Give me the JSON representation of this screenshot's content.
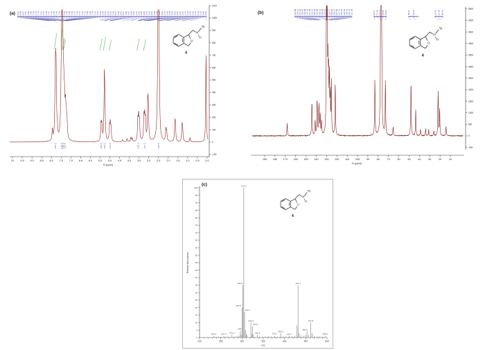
{
  "panels": {
    "a": {
      "label": "(a)"
    },
    "b": {
      "label": "(b)"
    },
    "c": {
      "label": "(c)"
    }
  },
  "molecule": {
    "substituent": "Ts",
    "nitrogen": "N",
    "proton": "H",
    "oxygen": "O",
    "compound_number": "4"
  },
  "chart_data": [
    {
      "id": "a",
      "type": "line",
      "spectrum": "1H NMR",
      "xlabel": "f1 (ppm)",
      "x_ticks": [
        "10",
        "9.5",
        "9.0",
        "8.5",
        "8.0",
        "7.5",
        "7.0",
        "6.5",
        "6.0",
        "5.5",
        "5.0",
        "4.5",
        "4.0",
        "3.5",
        "3.0",
        "2.5",
        "2.0",
        "1.5",
        "1.0",
        "0.5",
        "0.0"
      ],
      "y_ticks": [
        "1100",
        "1000",
        "900",
        "800",
        "700",
        "600",
        "500",
        "400",
        "300",
        "200",
        "100",
        "0",
        "-100"
      ],
      "line_color": "#8a1414",
      "annotation_color": "#3a3aa8",
      "integral_color": "#6abf69",
      "peaks": [
        [
          7.95,
          90
        ],
        [
          7.82,
          180
        ],
        [
          7.79,
          505
        ],
        [
          7.76,
          470
        ],
        [
          7.7,
          90
        ],
        [
          7.5,
          300,
          0.025
        ],
        [
          7.47,
          610,
          0.025
        ],
        [
          7.44,
          590,
          0.025
        ],
        [
          7.41,
          400,
          0.025
        ],
        [
          7.37,
          310,
          0.025
        ],
        [
          7.33,
          250,
          0.025
        ],
        [
          7.28,
          215,
          0.025
        ],
        [
          7.24,
          160,
          0.025
        ],
        [
          7.2,
          120,
          0.025
        ],
        [
          5.45,
          140
        ],
        [
          5.41,
          120
        ],
        [
          5.28,
          520
        ],
        [
          5.25,
          185
        ],
        [
          5.02,
          110
        ],
        [
          4.98,
          130
        ],
        [
          4.94,
          100
        ],
        [
          4.35,
          18
        ],
        [
          4.12,
          25
        ],
        [
          3.92,
          35
        ],
        [
          3.85,
          28
        ],
        [
          3.56,
          160
        ],
        [
          3.52,
          175
        ],
        [
          3.48,
          150
        ],
        [
          3.25,
          185
        ],
        [
          3.21,
          172
        ],
        [
          3.17,
          150
        ],
        [
          3.05,
          305
        ],
        [
          3.02,
          200
        ],
        [
          2.52,
          1060,
          0.03
        ],
        [
          2.49,
          650
        ],
        [
          2.46,
          280
        ],
        [
          2.12,
          95
        ],
        [
          2.08,
          70
        ],
        [
          1.66,
          145
        ],
        [
          1.63,
          110
        ],
        [
          1.29,
          125
        ],
        [
          1.26,
          90
        ],
        [
          0.88,
          35
        ],
        [
          0.06,
          710,
          0.018
        ]
      ],
      "peak_label_strip": [
        "8.11",
        "8.09",
        "8.07",
        "7.97",
        "7.82",
        "7.80",
        "7.78",
        "7.76",
        "7.74",
        "7.63",
        "7.51",
        "7.49",
        "7.47",
        "7.46",
        "7.45",
        "7.44",
        "7.43",
        "7.42",
        "7.41",
        "7.40",
        "7.39",
        "7.38",
        "7.37",
        "7.36",
        "7.34",
        "7.33",
        "7.31",
        "7.29",
        "7.28",
        "7.26",
        "7.24",
        "7.22",
        "5.46",
        "5.45",
        "5.42",
        "5.41",
        "5.29",
        "5.28",
        "5.27",
        "5.25",
        "5.03",
        "5.01",
        "4.99",
        "4.97",
        "4.95",
        "4.36",
        "4.13",
        "3.93",
        "3.86",
        "3.58",
        "3.56",
        "3.54",
        "3.52",
        "3.50",
        "3.48",
        "3.26",
        "3.24",
        "3.22",
        "3.20",
        "3.18",
        "3.06",
        "3.04",
        "2.52",
        "2.51",
        "2.50",
        "2.47",
        "2.12",
        "2.09",
        "1.66",
        "1.63",
        "1.29",
        "1.26",
        "0.88",
        "0.06"
      ],
      "integral_curves": [
        [
          7.79,
          42,
          65
        ],
        [
          7.45,
          20,
          66
        ],
        [
          7.39,
          49,
          66
        ],
        [
          7.33,
          51,
          66
        ],
        [
          5.45,
          50,
          67
        ],
        [
          5.27,
          47,
          67
        ],
        [
          4.98,
          51,
          67
        ],
        [
          3.55,
          50,
          67
        ],
        [
          3.21,
          51,
          67
        ]
      ],
      "integral_labels": [
        [
          7.79,
          "2.04"
        ],
        [
          7.47,
          "2.10"
        ],
        [
          7.4,
          "1.03"
        ],
        [
          7.31,
          "1.06"
        ],
        [
          5.44,
          "1.00"
        ],
        [
          5.27,
          "1.02"
        ],
        [
          4.98,
          "1.04"
        ],
        [
          3.54,
          "1.05"
        ],
        [
          3.21,
          "1.07"
        ],
        [
          2.5,
          "3.15"
        ]
      ]
    },
    {
      "id": "b",
      "type": "line",
      "spectrum": "13C NMR",
      "xlabel": "f1 (ppm)",
      "x_ticks": [
        "190",
        "180",
        "170",
        "160",
        "150",
        "140",
        "130",
        "120",
        "110",
        "100",
        "90",
        "80",
        "70",
        "60",
        "50",
        "40",
        "30",
        "20",
        "10"
      ],
      "y_ticks": [
        "5500",
        "5000",
        "4500",
        "4000",
        "3500",
        "3000",
        "2500",
        "2000",
        "1500",
        "1000",
        "500",
        "0",
        "-500"
      ],
      "line_color": "#7a1212",
      "annotation_color": "#3a3aa8",
      "peaks": [
        [
          168.2,
          550
        ],
        [
          144.3,
          1100
        ],
        [
          144.0,
          600
        ],
        [
          141.1,
          620
        ],
        [
          139.3,
          1120
        ],
        [
          139.0,
          700
        ],
        [
          137.5,
          980
        ],
        [
          137.2,
          600
        ],
        [
          136.2,
          880
        ],
        [
          134.9,
          600
        ],
        [
          130.2,
          4350
        ],
        [
          129.9,
          2500
        ],
        [
          129.4,
          4180
        ],
        [
          128.7,
          2600
        ],
        [
          128.1,
          2350
        ],
        [
          127.3,
          2400
        ],
        [
          126.5,
          1500
        ],
        [
          125.4,
          2300
        ],
        [
          121.6,
          2280
        ],
        [
          83.2,
          2380
        ],
        [
          77.5,
          6000,
          0.3
        ],
        [
          77.2,
          6300,
          0.3
        ],
        [
          76.8,
          6000,
          0.3
        ],
        [
          73.0,
          2320
        ],
        [
          65.5,
          380
        ],
        [
          48.2,
          2320
        ],
        [
          43.6,
          1120
        ],
        [
          39.0,
          280
        ],
        [
          34.0,
          320
        ],
        [
          31.0,
          280
        ],
        [
          26.0,
          200
        ],
        [
          21.9,
          1950
        ],
        [
          20.4,
          1150
        ],
        [
          14.2,
          420
        ]
      ],
      "label_clusters": [
        [
          "144.98",
          "144.12",
          "141.22",
          "139.45",
          "139.08",
          "137.62",
          "137.35",
          "136.41",
          "136.02",
          "134.88",
          "130.31",
          "130.05",
          "129.52",
          "129.38",
          "128.77",
          "128.45",
          "128.12",
          "127.56",
          "127.21",
          "126.44",
          "125.52",
          "125.31",
          "121.72",
          "121.38"
        ],
        [
          "83.17",
          "77.48",
          "77.16",
          "76.84",
          "72.95"
        ],
        [
          "48.21"
        ],
        [
          "43.63"
        ],
        [
          "21.93",
          "21.48",
          "20.40"
        ]
      ]
    },
    {
      "id": "c",
      "type": "bar",
      "spectrum": "mass spectrum",
      "xlabel": "m/z",
      "ylabel": "Relative Abundance",
      "x_ticks": [
        "200",
        "250",
        "300",
        "350",
        "400",
        "450",
        "500"
      ],
      "y_ticks": [
        "100",
        "95",
        "90",
        "85",
        "80",
        "75",
        "70",
        "65",
        "60",
        "55",
        "50",
        "45",
        "40",
        "35",
        "30",
        "25",
        "20",
        "15",
        "10",
        "5",
        "0"
      ],
      "bar_color": "#9a9a9a",
      "label_color": "#555555",
      "peaks": [
        {
          "mz": 233.2,
          "i": 1,
          "label": "233.2"
        },
        {
          "mz": 239,
          "i": 0.6
        },
        {
          "mz": 245,
          "i": 0.7
        },
        {
          "mz": 251,
          "i": 0.6
        },
        {
          "mz": 257.2,
          "i": 1,
          "label": "257.2"
        },
        {
          "mz": 263,
          "i": 0.6
        },
        {
          "mz": 268,
          "i": 0.7
        },
        {
          "mz": 276.2,
          "i": 1.8,
          "label": "276.2"
        },
        {
          "mz": 282,
          "i": 0.8
        },
        {
          "mz": 288,
          "i": 0.9
        },
        {
          "mz": 293,
          "i": 1.2
        },
        {
          "mz": 296.1,
          "i": 4.5,
          "label": "296.1"
        },
        {
          "mz": 298,
          "i": 2
        },
        {
          "mz": 300.0,
          "i": 20,
          "label": "300.0",
          "dx": -5
        },
        {
          "mz": 302.0,
          "i": 35,
          "label": "302.0",
          "dx": -4
        },
        {
          "mz": 304.0,
          "i": 100,
          "label": "304.0"
        },
        {
          "mz": 306.0,
          "i": 17,
          "label": "306.0",
          "dx": 4
        },
        {
          "mz": 308,
          "i": 5
        },
        {
          "mz": 310,
          "i": 2.5
        },
        {
          "mz": 312,
          "i": 1.5
        },
        {
          "mz": 320.9,
          "i": 10,
          "label": "320.9"
        },
        {
          "mz": 323,
          "i": 2.5
        },
        {
          "mz": 324.9,
          "i": 7.5,
          "label": "324.9",
          "dx": 4
        },
        {
          "mz": 327,
          "i": 2
        },
        {
          "mz": 336.3,
          "i": 1.8,
          "label": "336.3"
        },
        {
          "mz": 341,
          "i": 0.8
        },
        {
          "mz": 348,
          "i": 0.7
        },
        {
          "mz": 355,
          "i": 0.8
        },
        {
          "mz": 362,
          "i": 1
        },
        {
          "mz": 368,
          "i": 0.7
        },
        {
          "mz": 376.7,
          "i": 1.3,
          "label": "376.7"
        },
        {
          "mz": 383,
          "i": 0.7
        },
        {
          "mz": 390.9,
          "i": 2.8,
          "label": "390.9"
        },
        {
          "mz": 397,
          "i": 0.8
        },
        {
          "mz": 403,
          "i": 0.7
        },
        {
          "mz": 411.1,
          "i": 1.2,
          "label": "411.1"
        },
        {
          "mz": 417,
          "i": 0.8
        },
        {
          "mz": 424,
          "i": 1.2
        },
        {
          "mz": 429,
          "i": 8
        },
        {
          "mz": 431.9,
          "i": 35,
          "label": "431.9"
        },
        {
          "mz": 434,
          "i": 3
        },
        {
          "mz": 438,
          "i": 1.5
        },
        {
          "mz": 445,
          "i": 1.2
        },
        {
          "mz": 450,
          "i": 2
        },
        {
          "mz": 452.9,
          "i": 4,
          "label": "452.9",
          "dx": -3
        },
        {
          "mz": 457,
          "i": 2
        },
        {
          "mz": 461.8,
          "i": 10,
          "label": "461.8"
        },
        {
          "mz": 465,
          "i": 3
        },
        {
          "mz": 470,
          "i": 1
        },
        {
          "mz": 477,
          "i": 0.8
        },
        {
          "mz": 483,
          "i": 0.7
        },
        {
          "mz": 489,
          "i": 0.6
        },
        {
          "mz": 495.6,
          "i": 1.2,
          "label": "495.6"
        }
      ]
    }
  ]
}
